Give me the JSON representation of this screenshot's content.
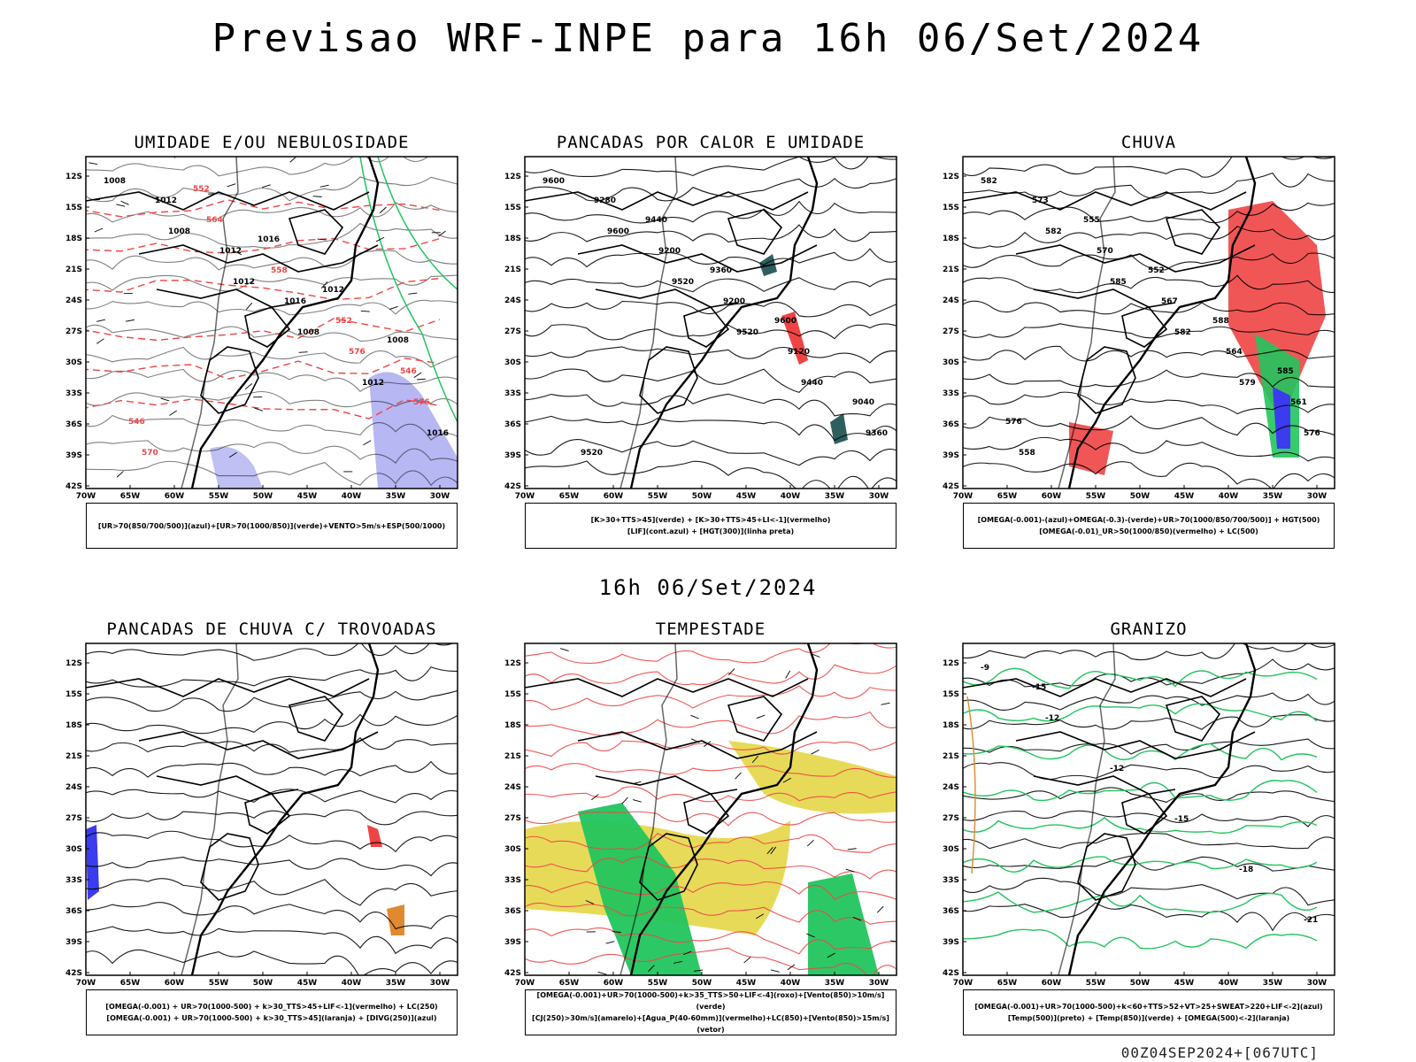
{
  "title": "Previsao WRF-INPE  para 16h 06/Set/2024",
  "mid_date": "16h 06/Set/2024",
  "footer": "00Z04SEP2024+[067UTC]",
  "lat_labels": [
    "12S",
    "15S",
    "18S",
    "21S",
    "24S",
    "27S",
    "30S",
    "33S",
    "36S",
    "39S",
    "42S"
  ],
  "lon_labels": [
    "70W",
    "65W",
    "60W",
    "55W",
    "50W",
    "45W",
    "40W",
    "35W",
    "30W"
  ],
  "colors": {
    "red": "#ef4444",
    "green": "#22c55e",
    "blue": "#3b3bf0",
    "yellow": "#e3d43c",
    "orange": "#e08a30",
    "teal": "#2f5e5e",
    "lavender": "#a5a5f0"
  },
  "panels": [
    {
      "title": "UMIDADE E/OU NEBULOSIDADE",
      "legend": [
        "[UR>70(850/700/500)](azul)+[UR>70(1000/850)](verde)+VENTO>5m/s+ESP(500/1000)"
      ],
      "labels": [
        "1008",
        "1008",
        "1012",
        "1008",
        "1012",
        "1016",
        "1012",
        "1012",
        "1016",
        "576",
        "576",
        "570",
        "564",
        "558",
        "552",
        "546",
        "546",
        "552",
        "1016",
        "1012",
        "1008"
      ]
    },
    {
      "title": "PANCADAS POR CALOR E UMIDADE",
      "legend": [
        "[K>30+TTS>45](verde) + [K>30+TTS>45+LI<-1](vermelho)",
        "[LIF](cont.azul) + [HGT(300)](linha preta)"
      ],
      "labels": [
        "9600",
        "9600",
        "9520",
        "9520",
        "9440",
        "9360",
        "9280",
        "9200",
        "9200",
        "9120",
        "9040",
        "9520",
        "9440",
        "9360",
        "9600"
      ]
    },
    {
      "title": "CHUVA",
      "legend": [
        "[OMEGA(-0.001)-(azul)+OMEGA(-0.3)-(verde)+UR>70(1000/850/700/500)] + HGT(500)",
        "[OMEGA(-0.01)_UR>50(1000/850)(vermelho) + LC(500)"
      ],
      "labels": [
        "582",
        "582",
        "585",
        "582",
        "579",
        "576",
        "573",
        "570",
        "567",
        "564",
        "561",
        "558",
        "555",
        "552",
        "588",
        "585",
        "576"
      ]
    },
    {
      "title": "PANCADAS DE CHUVA C/ TROVOADAS",
      "legend": [
        "[OMEGA(-0.001) + UR>70(1000-500) + k>30_TTS>45+LIF<-1](vermelho) + LC(250)",
        "[OMEGA(-0.001) + UR>70(1000-500) + k>30_TTS>45](laranja) + [DIVG(250)](azul)"
      ],
      "labels": []
    },
    {
      "title": "TEMPESTADE",
      "legend": [
        "[OMEGA(-0.001)+UR>70(1000-500)+k>35_TTS>50+LIF<-4](roxo)+[Vento(850)>10m/s](verde)",
        "[CJ(250)>30m/s](amarelo)+[Agua_P(40-60mm)](vermelho)+LC(850)+[Vento(850)>15m/s](vetor)"
      ],
      "labels": []
    },
    {
      "title": "GRANIZO",
      "legend": [
        "[OMEGA(-0.001)+UR>70(1000-500)+k<60+TTS>52+VT>25+SWEAT>220+LIF<-2](azul)",
        "[Temp(500)](preto) + [Temp(850)](verde) + [OMEGA(500)<-2](laranja)"
      ],
      "labels": [
        "-9",
        "-12",
        "-12",
        "-15",
        "-18",
        "-21",
        "-15"
      ]
    }
  ]
}
